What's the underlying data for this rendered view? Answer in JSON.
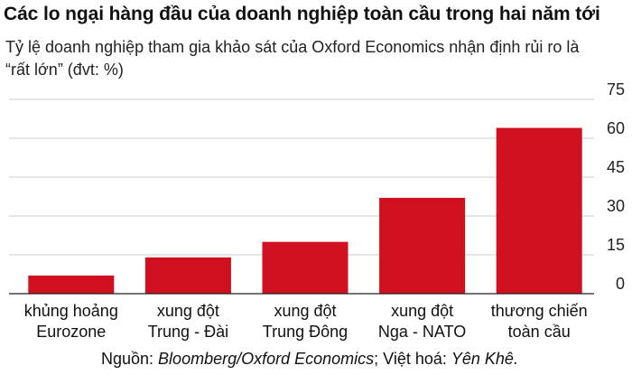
{
  "title": "Các lo ngại hàng đầu của doanh nghiệp toàn cầu trong hai năm tới",
  "subtitle": "Tỷ lệ doanh nghiệp tham gia khảo sát của Oxford Economics nhận định rủi ro là “rất lớn” (đvt: %)",
  "source": {
    "prefix": "Nguồn: ",
    "publisher": "Bloomberg/Oxford Economics",
    "separator": "; Việt hoá: ",
    "translator": "Yên Khê."
  },
  "colors": {
    "bar": "#d0101e",
    "grid": "#cccccc",
    "baseline": "#222222"
  },
  "chart_data": {
    "type": "bar",
    "title": "Các lo ngại hàng đầu của doanh nghiệp toàn cầu trong hai năm tới",
    "subtitle": "Tỷ lệ doanh nghiệp tham gia khảo sát của Oxford Economics nhận định rủi ro là “rất lớn” (đvt: %)",
    "categories": [
      [
        "khủng hoảng",
        "Eurozone"
      ],
      [
        "xung đột",
        "Trung - Đài"
      ],
      [
        "xung đột",
        "Trung Đông"
      ],
      [
        "xung đột",
        "Nga - NATO"
      ],
      [
        "thương chiến",
        "toàn cầu"
      ]
    ],
    "values": [
      7,
      14,
      20,
      37,
      64
    ],
    "ylim": [
      0,
      75
    ],
    "yticks": [
      0,
      15,
      30,
      45,
      60,
      75
    ],
    "y_axis_side": "right",
    "grid": true,
    "legend": "none"
  }
}
